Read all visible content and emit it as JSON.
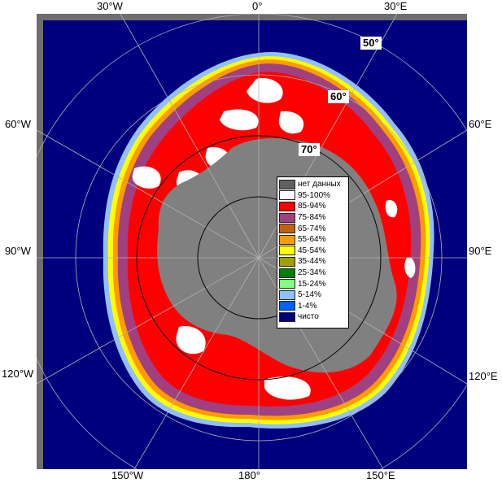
{
  "map": {
    "longitude_labels": {
      "top_30w": "30°W",
      "top_0": "0°",
      "top_30e": "30°E",
      "left_60w": "60°W",
      "left_90w": "90°W",
      "left_120w": "120°W",
      "right_60e": "60°E",
      "right_90e": "90°E",
      "right_120e": "120°E",
      "bottom_150w": "150°W",
      "bottom_180": "180°",
      "bottom_150e": "150°E"
    },
    "latitude_labels": {
      "lat_50": "50°",
      "lat_60": "60°",
      "lat_70": "70°"
    },
    "colors": {
      "ocean": "#00007f",
      "no_data": "#808080",
      "frame": "#6e6e6e",
      "graticule": "#b0b0b0",
      "circle": "#000000"
    }
  },
  "legend": {
    "items": [
      {
        "label": "нет данных",
        "color": "#606060"
      },
      {
        "label": "95-100%",
        "color": "#ffffff"
      },
      {
        "label": "85-94%",
        "color": "#ff0000"
      },
      {
        "label": "75-84%",
        "color": "#a04080"
      },
      {
        "label": "65-74%",
        "color": "#c06010"
      },
      {
        "label": "55-64%",
        "color": "#ff9a00"
      },
      {
        "label": "45-54%",
        "color": "#ffff00"
      },
      {
        "label": "35-44%",
        "color": "#a0a000"
      },
      {
        "label": "25-34%",
        "color": "#008000"
      },
      {
        "label": "15-24%",
        "color": "#80ff80"
      },
      {
        "label": "5-14%",
        "color": "#90c0ff"
      },
      {
        "label": "1-4%",
        "color": "#0060ff"
      },
      {
        "label": "чисто",
        "color": "#00007f"
      }
    ]
  }
}
